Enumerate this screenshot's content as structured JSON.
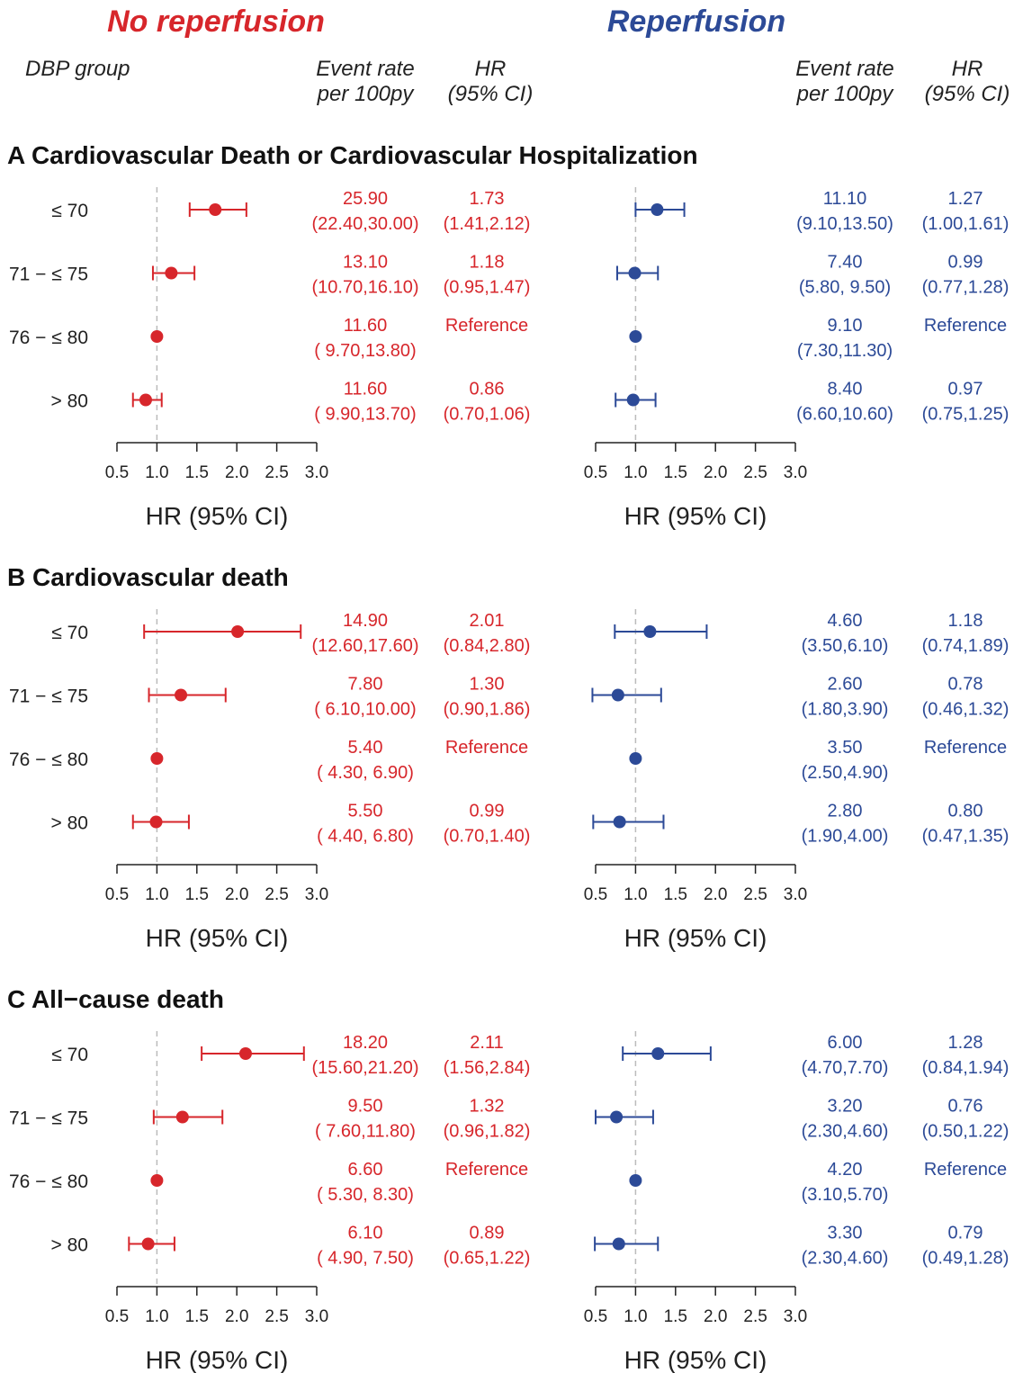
{
  "colors": {
    "no_reperfusion": "#d7262b",
    "reperfusion": "#2c4a97",
    "reference_line": "#bbbbbb",
    "axis": "#222222"
  },
  "headers": {
    "left_title": "No reperfusion",
    "right_title": "Reperfusion",
    "group_col": "DBP group",
    "rate_col_line1": "Event rate",
    "rate_col_line2": "per 100py",
    "hr_col_line1": "HR",
    "hr_col_line2": "(95% CI)"
  },
  "chart_data": {
    "type": "forest",
    "x_axis": {
      "label": "HR (95% CI)",
      "ticks": [
        "0.5",
        "1.0",
        "1.5",
        "2.0",
        "2.5",
        "3.0"
      ],
      "xlim": [
        0.5,
        3.0
      ],
      "reference": 1.0
    },
    "groups": [
      "≤ 70",
      "71 − ≤ 75",
      "76 − ≤ 80",
      "> 80"
    ],
    "sections": [
      {
        "title": "A Cardiovascular Death or Cardiovascular Hospitalization",
        "no_reperfusion": [
          {
            "hr": 1.73,
            "lo": 1.41,
            "hi": 2.12,
            "rate": "25.90",
            "rate_ci": "(22.40,30.00)",
            "hr_text": "1.73",
            "hr_ci": "(1.41,2.12)"
          },
          {
            "hr": 1.18,
            "lo": 0.95,
            "hi": 1.47,
            "rate": "13.10",
            "rate_ci": "(10.70,16.10)",
            "hr_text": "1.18",
            "hr_ci": "(0.95,1.47)"
          },
          {
            "hr": 1.0,
            "lo": null,
            "hi": null,
            "rate": "11.60",
            "rate_ci": "( 9.70,13.80)",
            "hr_text": "Reference",
            "hr_ci": ""
          },
          {
            "hr": 0.86,
            "lo": 0.7,
            "hi": 1.06,
            "rate": "11.60",
            "rate_ci": "( 9.90,13.70)",
            "hr_text": "0.86",
            "hr_ci": "(0.70,1.06)"
          }
        ],
        "reperfusion": [
          {
            "hr": 1.27,
            "lo": 1.0,
            "hi": 1.61,
            "rate": "11.10",
            "rate_ci": "(9.10,13.50)",
            "hr_text": "1.27",
            "hr_ci": "(1.00,1.61)"
          },
          {
            "hr": 0.99,
            "lo": 0.77,
            "hi": 1.28,
            "rate": "7.40",
            "rate_ci": "(5.80, 9.50)",
            "hr_text": "0.99",
            "hr_ci": "(0.77,1.28)"
          },
          {
            "hr": 1.0,
            "lo": null,
            "hi": null,
            "rate": "9.10",
            "rate_ci": "(7.30,11.30)",
            "hr_text": "Reference",
            "hr_ci": ""
          },
          {
            "hr": 0.97,
            "lo": 0.75,
            "hi": 1.25,
            "rate": "8.40",
            "rate_ci": "(6.60,10.60)",
            "hr_text": "0.97",
            "hr_ci": "(0.75,1.25)"
          }
        ]
      },
      {
        "title": "B Cardiovascular death",
        "no_reperfusion": [
          {
            "hr": 2.01,
            "lo": 0.84,
            "hi": 2.8,
            "rate": "14.90",
            "rate_ci": "(12.60,17.60)",
            "hr_text": "2.01",
            "hr_ci": "(0.84,2.80)"
          },
          {
            "hr": 1.3,
            "lo": 0.9,
            "hi": 1.86,
            "rate": "7.80",
            "rate_ci": "( 6.10,10.00)",
            "hr_text": "1.30",
            "hr_ci": "(0.90,1.86)"
          },
          {
            "hr": 1.0,
            "lo": null,
            "hi": null,
            "rate": "5.40",
            "rate_ci": "( 4.30, 6.90)",
            "hr_text": "Reference",
            "hr_ci": ""
          },
          {
            "hr": 0.99,
            "lo": 0.7,
            "hi": 1.4,
            "rate": "5.50",
            "rate_ci": "( 4.40, 6.80)",
            "hr_text": "0.99",
            "hr_ci": "(0.70,1.40)"
          }
        ],
        "reperfusion": [
          {
            "hr": 1.18,
            "lo": 0.74,
            "hi": 1.89,
            "rate": "4.60",
            "rate_ci": "(3.50,6.10)",
            "hr_text": "1.18",
            "hr_ci": "(0.74,1.89)"
          },
          {
            "hr": 0.78,
            "lo": 0.46,
            "hi": 1.32,
            "rate": "2.60",
            "rate_ci": "(1.80,3.90)",
            "hr_text": "0.78",
            "hr_ci": "(0.46,1.32)"
          },
          {
            "hr": 1.0,
            "lo": null,
            "hi": null,
            "rate": "3.50",
            "rate_ci": "(2.50,4.90)",
            "hr_text": "Reference",
            "hr_ci": ""
          },
          {
            "hr": 0.8,
            "lo": 0.47,
            "hi": 1.35,
            "rate": "2.80",
            "rate_ci": "(1.90,4.00)",
            "hr_text": "0.80",
            "hr_ci": "(0.47,1.35)"
          }
        ]
      },
      {
        "title": "C All−cause death",
        "no_reperfusion": [
          {
            "hr": 2.11,
            "lo": 1.56,
            "hi": 2.84,
            "rate": "18.20",
            "rate_ci": "(15.60,21.20)",
            "hr_text": "2.11",
            "hr_ci": "(1.56,2.84)"
          },
          {
            "hr": 1.32,
            "lo": 0.96,
            "hi": 1.82,
            "rate": "9.50",
            "rate_ci": "( 7.60,11.80)",
            "hr_text": "1.32",
            "hr_ci": "(0.96,1.82)"
          },
          {
            "hr": 1.0,
            "lo": null,
            "hi": null,
            "rate": "6.60",
            "rate_ci": "( 5.30, 8.30)",
            "hr_text": "Reference",
            "hr_ci": ""
          },
          {
            "hr": 0.89,
            "lo": 0.65,
            "hi": 1.22,
            "rate": "6.10",
            "rate_ci": "( 4.90, 7.50)",
            "hr_text": "0.89",
            "hr_ci": "(0.65,1.22)"
          }
        ],
        "reperfusion": [
          {
            "hr": 1.28,
            "lo": 0.84,
            "hi": 1.94,
            "rate": "6.00",
            "rate_ci": "(4.70,7.70)",
            "hr_text": "1.28",
            "hr_ci": "(0.84,1.94)"
          },
          {
            "hr": 0.76,
            "lo": 0.5,
            "hi": 1.22,
            "rate": "3.20",
            "rate_ci": "(2.30,4.60)",
            "hr_text": "0.76",
            "hr_ci": "(0.50,1.22)"
          },
          {
            "hr": 1.0,
            "lo": null,
            "hi": null,
            "rate": "4.20",
            "rate_ci": "(3.10,5.70)",
            "hr_text": "Reference",
            "hr_ci": ""
          },
          {
            "hr": 0.79,
            "lo": 0.49,
            "hi": 1.28,
            "rate": "3.30",
            "rate_ci": "(2.30,4.60)",
            "hr_text": "0.79",
            "hr_ci": "(0.49,1.28)"
          }
        ]
      }
    ]
  }
}
